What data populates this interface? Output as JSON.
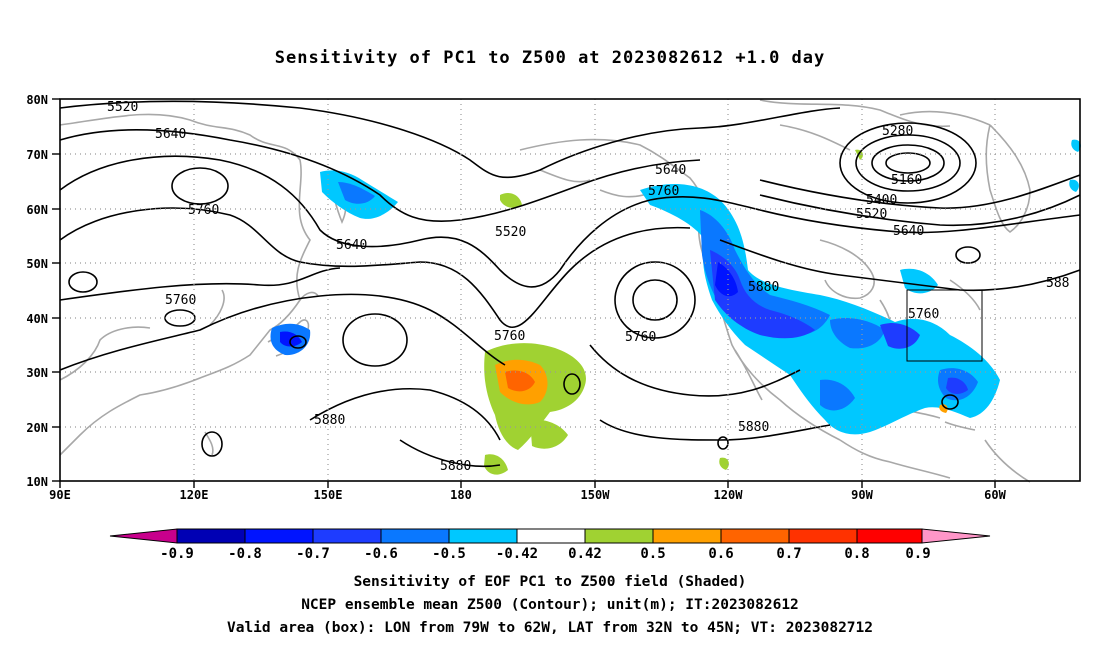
{
  "title": "Sensitivity of PC1 to Z500 at 2023082612 +1.0 day",
  "map": {
    "lat_labels": [
      "80N",
      "70N",
      "60N",
      "50N",
      "40N",
      "30N",
      "20N",
      "10N"
    ],
    "lon_labels": [
      "90E",
      "120E",
      "150E",
      "180",
      "150W",
      "120W",
      "90W",
      "60W"
    ],
    "contour_labels": [
      "5520",
      "5640",
      "5760",
      "5640",
      "5760",
      "5520",
      "5640",
      "5760",
      "5880",
      "5760",
      "5880",
      "5880",
      "5640",
      "5760",
      "5880",
      "5760",
      "5280",
      "5160",
      "5400",
      "5520",
      "5640",
      "5760",
      "588",
      "5880"
    ],
    "valid_box": {
      "lon_min": "79W",
      "lon_max": "62W",
      "lat_min": "32N",
      "lat_max": "45N"
    }
  },
  "colorbar": {
    "labels": [
      "-0.9",
      "-0.8",
      "-0.7",
      "-0.6",
      "-0.5",
      "-0.42",
      "0.42",
      "0.5",
      "0.6",
      "0.7",
      "0.8",
      "0.9"
    ],
    "colors": [
      "#c8008c",
      "#0000b4",
      "#0014ff",
      "#1e3cff",
      "#0a78ff",
      "#00c8ff",
      "#ffffff",
      "#a0d232",
      "#ffa000",
      "#ff6400",
      "#ff3200",
      "#ff0000",
      "#ff96c8"
    ]
  },
  "captions": {
    "line1": "Sensitivity of EOF PC1 to Z500 field (Shaded)",
    "line2": "NCEP ensemble mean Z500 (Contour); unit(m); IT:2023082612",
    "line3": "Valid area (box): LON from 79W to 62W, LAT from 32N to 45N; VT: 2023082712"
  }
}
